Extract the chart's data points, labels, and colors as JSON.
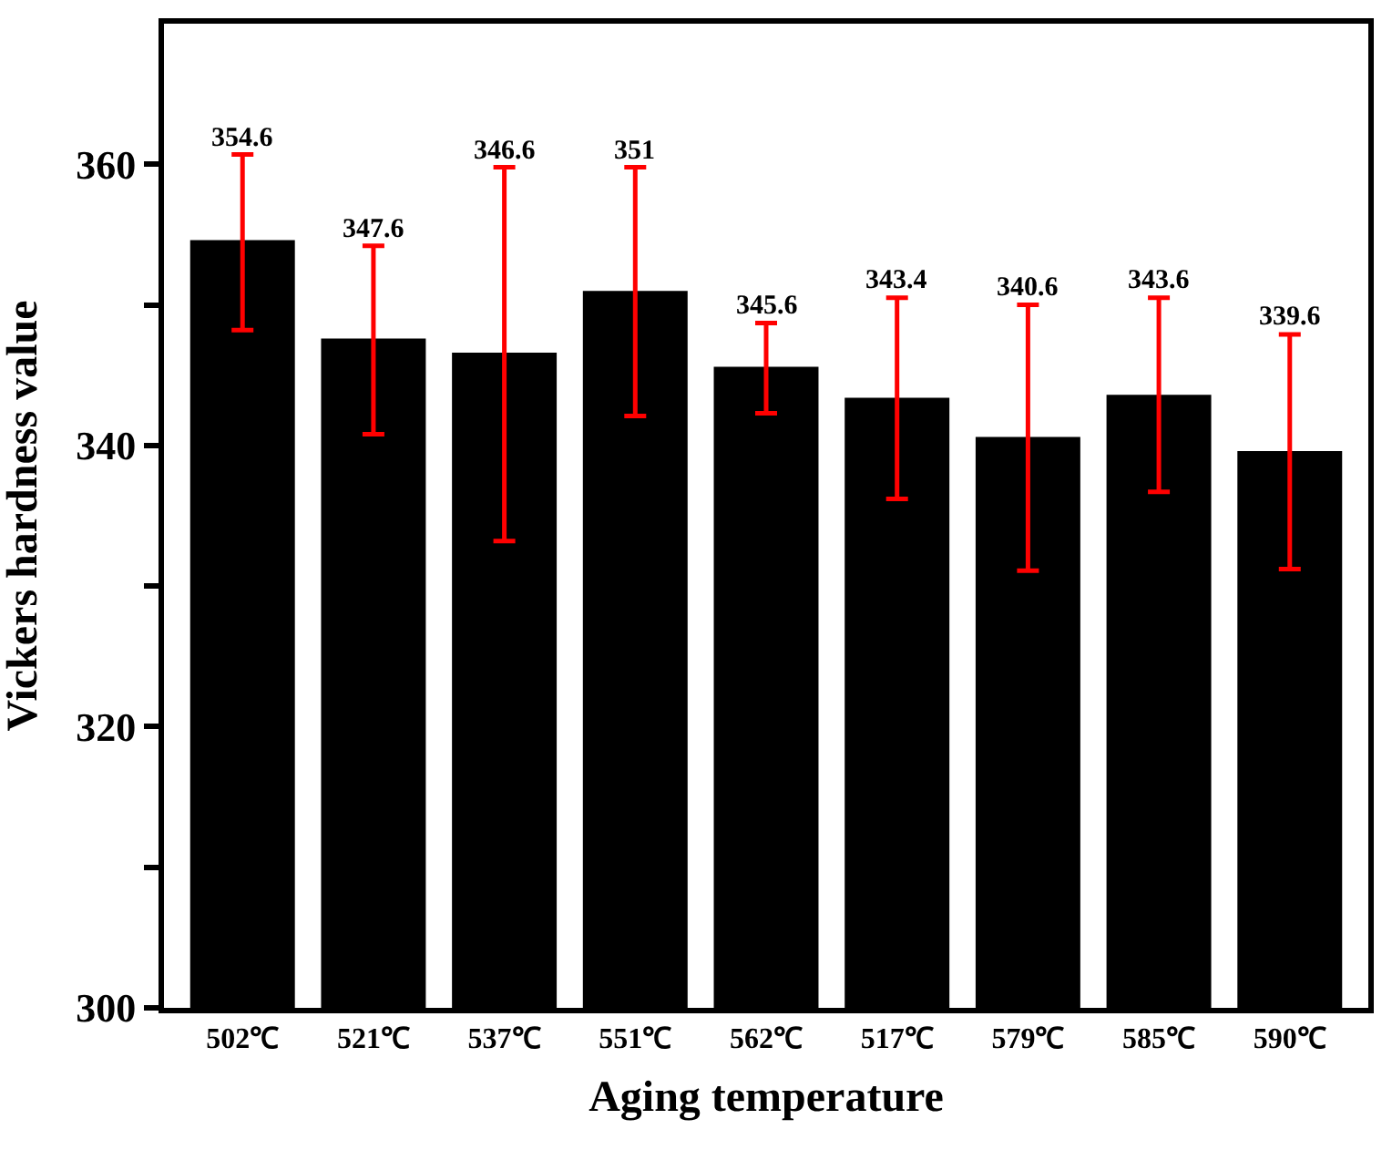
{
  "chart_data": {
    "type": "bar",
    "xlabel": "Aging temperature",
    "ylabel": "Vickers hardness value",
    "categories": [
      "502℃",
      "521℃",
      "537℃",
      "551℃",
      "562℃",
      "517℃",
      "579℃",
      "585℃",
      "590℃"
    ],
    "values": [
      354.6,
      347.6,
      346.6,
      351,
      345.6,
      343.4,
      340.6,
      343.6,
      339.6
    ],
    "errors": [
      [
        348.2,
        360.7
      ],
      [
        340.8,
        354.2
      ],
      [
        333.2,
        359.8
      ],
      [
        342.1,
        359.8
      ],
      [
        342.3,
        348.7
      ],
      [
        336.2,
        350.5
      ],
      [
        331.1,
        350.0
      ],
      [
        336.7,
        350.5
      ],
      [
        331.2,
        347.9
      ]
    ],
    "color": "#000000",
    "annotations": [
      {
        "text": "354.6",
        "x": "502℃",
        "y": 360.7
      },
      {
        "text": "347.6",
        "x": "521℃",
        "y": 354.2
      },
      {
        "text": "346.6",
        "x": "537℃",
        "y": 359.8
      },
      {
        "text": "351",
        "x": "551℃",
        "y": 359.8
      },
      {
        "text": "345.6",
        "x": "562℃",
        "y": 348.7
      },
      {
        "text": "343.4",
        "x": "517℃",
        "y": 350.5
      },
      {
        "text": "340.6",
        "x": "579℃",
        "y": 350.0
      },
      {
        "text": "343.6",
        "x": "585℃",
        "y": 350.5
      },
      {
        "text": "339.6",
        "x": "590℃",
        "y": 347.9
      }
    ],
    "ylim": [
      300,
      370
    ],
    "yticks": [
      300,
      {
        "value": 310,
        "label": null
      },
      320,
      {
        "value": 330,
        "label": null
      },
      340,
      {
        "value": 350,
        "label": null
      },
      360
    ],
    "legend": false
  }
}
